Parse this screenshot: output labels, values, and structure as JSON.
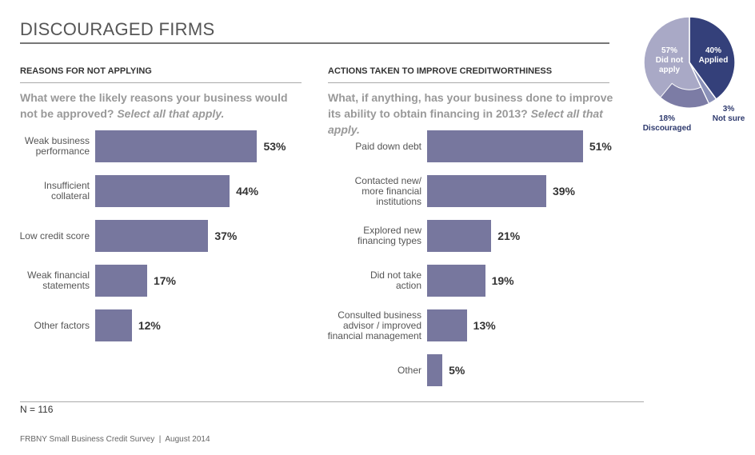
{
  "header": {
    "title": "DISCOURAGED FIRMS"
  },
  "chart_data": [
    {
      "type": "bar",
      "title": "REASONS FOR NOT APPLYING",
      "question": "What were the likely reasons your business would not be approved?",
      "question_emphasis": "Select all that apply.",
      "categories": [
        "Weak business\nperformance",
        "Insufficient\ncollateral",
        "Low credit score",
        "Weak financial\nstatements",
        "Other factors"
      ],
      "values": [
        53,
        44,
        37,
        17,
        12
      ],
      "value_labels": [
        "53%",
        "44%",
        "37%",
        "17%",
        "12%"
      ],
      "color": "#77779e"
    },
    {
      "type": "bar",
      "title": "ACTIONS TAKEN TO IMPROVE CREDITWORTHINESS",
      "question": "What, if anything, has your business done to improve its ability to obtain financing in 2013?",
      "question_emphasis": "Select all that apply.",
      "categories": [
        "Paid down debt",
        "Contacted new/\nmore financial\ninstitutions",
        "Explored new\nfinancing types",
        "Did not take\naction",
        "Consulted business\nadvisor / improved\nfinancial management",
        "Other"
      ],
      "values": [
        51,
        39,
        21,
        19,
        13,
        5
      ],
      "value_labels": [
        "51%",
        "39%",
        "21%",
        "19%",
        "13%",
        "5%"
      ],
      "color": "#77779e"
    },
    {
      "type": "pie",
      "categories": [
        "Applied",
        "Not sure",
        "Did not apply"
      ],
      "values": [
        40,
        3,
        57
      ],
      "value_labels": [
        "40%",
        "3%",
        "57%"
      ],
      "colors": [
        "#34407a",
        "#8a90b8",
        "#a9a9c6"
      ],
      "sub_categories": [
        "Discouraged"
      ],
      "sub_values": [
        18
      ],
      "sub_value_labels": [
        "18%"
      ],
      "sub_colors": [
        "#7c7ca5"
      ]
    }
  ],
  "note": "N = 116",
  "footer": "FRBNY Small Business Credit Survey  |  August 2014"
}
